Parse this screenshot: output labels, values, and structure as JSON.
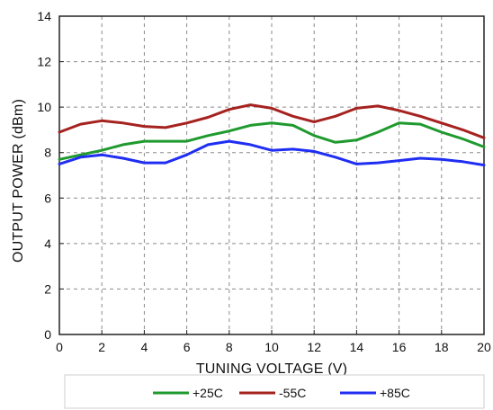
{
  "chart_data": {
    "type": "line",
    "title": "",
    "xlabel": "TUNING VOLTAGE (V)",
    "ylabel": "OUTPUT POWER (dBm)",
    "xlim": [
      0,
      20
    ],
    "ylim": [
      0,
      14
    ],
    "x_ticks": [
      0,
      2,
      4,
      6,
      8,
      10,
      12,
      14,
      16,
      18,
      20
    ],
    "y_ticks": [
      0,
      2,
      4,
      6,
      8,
      10,
      12,
      14
    ],
    "grid": true,
    "legend_position": "bottom",
    "x": [
      0,
      1,
      2,
      3,
      4,
      5,
      6,
      7,
      8,
      9,
      10,
      11,
      12,
      13,
      14,
      15,
      16,
      17,
      18,
      19,
      20
    ],
    "series": [
      {
        "name": "+25C",
        "color": "#1f9a2e",
        "values": [
          7.7,
          7.9,
          8.1,
          8.35,
          8.5,
          8.5,
          8.5,
          8.75,
          8.95,
          9.2,
          9.3,
          9.2,
          8.75,
          8.45,
          8.55,
          8.9,
          9.3,
          9.25,
          8.9,
          8.6,
          8.25
        ]
      },
      {
        "name": "-55C",
        "color": "#a5221f",
        "values": [
          8.9,
          9.25,
          9.4,
          9.3,
          9.15,
          9.1,
          9.3,
          9.55,
          9.9,
          10.1,
          9.95,
          9.6,
          9.35,
          9.6,
          9.95,
          10.05,
          9.85,
          9.6,
          9.3,
          9.0,
          8.65
        ]
      },
      {
        "name": "+85C",
        "color": "#1f2ef2",
        "values": [
          7.5,
          7.8,
          7.9,
          7.75,
          7.55,
          7.55,
          7.9,
          8.35,
          8.5,
          8.35,
          8.1,
          8.15,
          8.05,
          7.8,
          7.5,
          7.55,
          7.65,
          7.75,
          7.7,
          7.6,
          7.45
        ]
      }
    ]
  }
}
